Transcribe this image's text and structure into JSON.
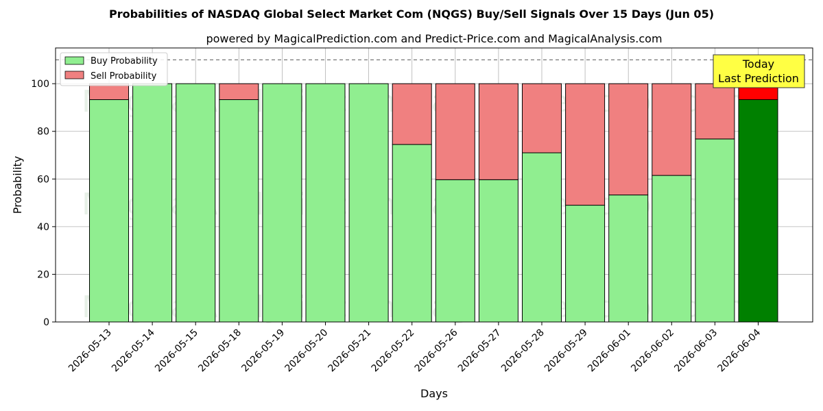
{
  "chart_data": {
    "type": "bar",
    "stacked": true,
    "title": "Probabilities of NASDAQ Global Select Market Com (NQGS) Buy/Sell Signals Over 15 Days (Jun 05)",
    "subtitle": "powered by MagicalPrediction.com and Predict-Price.com and MagicalAnalysis.com",
    "xlabel": "Days",
    "ylabel": "Probability",
    "ylim": [
      0,
      115
    ],
    "yticks": [
      0,
      20,
      40,
      60,
      80,
      100
    ],
    "reference_line": 110,
    "grid": true,
    "legend_position": "top-left",
    "categories": [
      "2026-05-13",
      "2026-05-14",
      "2026-05-15",
      "2026-05-18",
      "2026-05-19",
      "2026-05-20",
      "2026-05-21",
      "2026-05-22",
      "2026-05-26",
      "2026-05-27",
      "2026-05-28",
      "2026-05-29",
      "2026-06-01",
      "2026-06-02",
      "2026-06-03",
      "2026-06-04"
    ],
    "series": [
      {
        "name": "Buy Probability",
        "color": "#90ee90",
        "highlight_color": "#008000",
        "values": [
          93.3,
          100,
          100,
          93.3,
          100,
          100,
          100,
          74.5,
          59.7,
          59.7,
          71.0,
          49.0,
          53.3,
          61.5,
          76.8,
          93.3
        ]
      },
      {
        "name": "Sell Probability",
        "color": "#f08080",
        "highlight_color": "#ff0000",
        "values": [
          6.7,
          0,
          0,
          6.7,
          0,
          0,
          0,
          25.5,
          40.3,
          40.3,
          29.0,
          51.0,
          46.7,
          38.5,
          23.2,
          6.7
        ]
      }
    ],
    "highlight_index": 15,
    "annotation": {
      "lines": [
        "Today",
        "Last Prediction"
      ],
      "background": "#ffff44"
    },
    "watermarks": [
      "MagicalAnalysis.com",
      "MagicalPrediction.com"
    ]
  }
}
